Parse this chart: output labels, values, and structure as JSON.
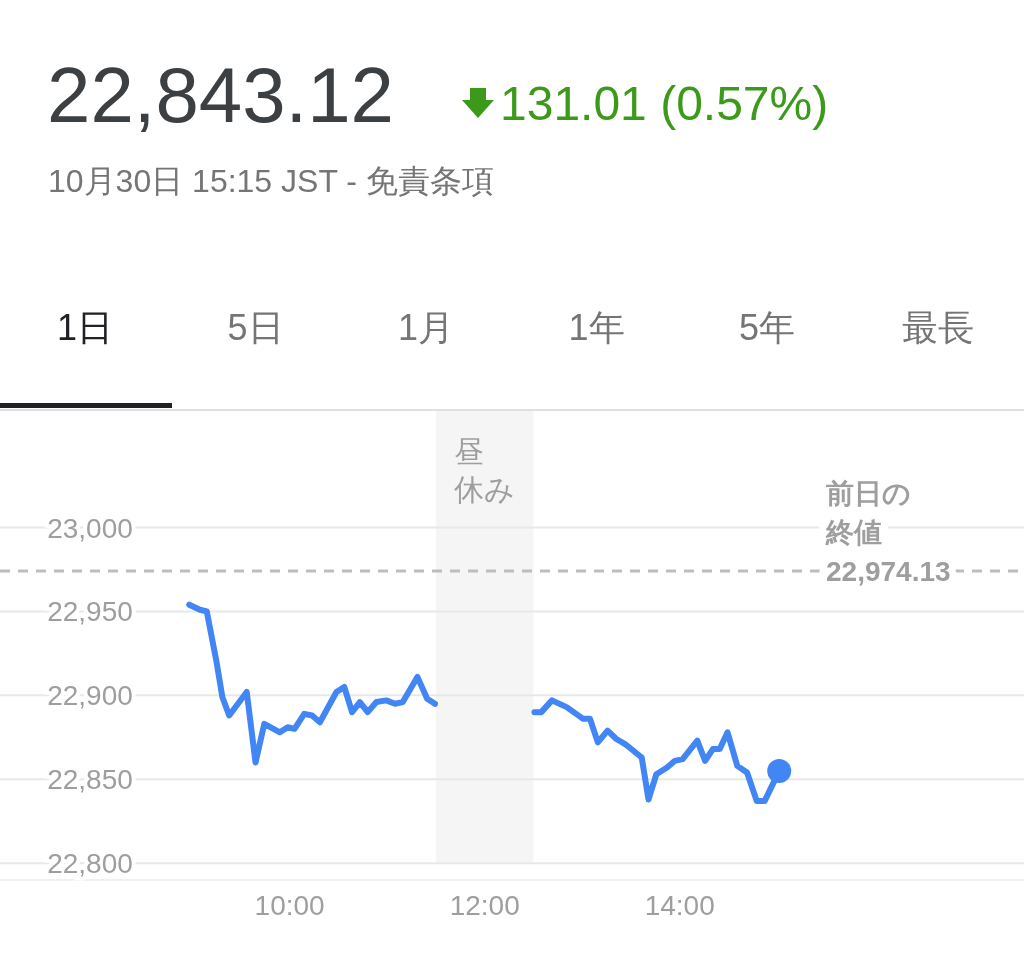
{
  "chart_data": {
    "type": "line",
    "title": "22,843.12",
    "annotations": [
      "131.01 (0.57%)",
      "10月30日 15:15 JST - 免責条項",
      "1日",
      "5日",
      "1月",
      "1年",
      "5年",
      "最長",
      {
        "text": "22,974.13",
        "x": 15.5,
        "y": 22974.13
      }
    ],
    "series": [
      {
        "color": "#4285f4",
        "x": [
          8.97,
          9.08,
          9.15,
          9.25,
          9.31,
          9.38,
          9.56,
          9.65,
          9.74,
          9.9,
          9.98,
          10.05,
          10.15,
          10.23,
          10.31,
          10.48,
          10.56,
          10.64,
          10.72,
          10.8,
          10.89,
          10.99,
          11.08,
          11.16,
          11.31,
          11.41,
          11.49,
          12.0,
          12.51,
          12.58,
          12.69,
          12.84,
          13.01,
          13.08,
          13.16,
          13.26,
          13.35,
          13.44,
          13.61,
          13.68,
          13.76,
          13.87,
          13.95,
          14.03,
          14.18,
          14.26,
          14.34,
          14.41,
          14.49,
          14.59,
          14.69,
          14.79,
          14.87,
          15.02
        ],
        "values": [
          22954,
          22951,
          22950,
          22920,
          22899,
          22888,
          22902,
          22860,
          22883,
          22878,
          22881,
          22880,
          22889,
          22888,
          22884,
          22902,
          22905,
          22890,
          22896,
          22890,
          22896,
          22897,
          22895,
          22896,
          22911,
          22898,
          22895,
          null,
          22890,
          22890,
          22897,
          22893,
          22886,
          22886,
          22872,
          22879,
          22874,
          22871,
          22863,
          22838,
          22853,
          22857,
          22861,
          22862,
          22873,
          22861,
          22868,
          22868,
          22878,
          22858,
          22854,
          22837,
          22837,
          22855
        ]
      }
    ],
    "xlim": [
      7.03,
      17.53
    ],
    "ylim": [
      22790,
      23070
    ],
    "xticks": [
      {
        "value": 10,
        "label": "10:00"
      },
      {
        "value": 12,
        "label": "12:00"
      },
      {
        "value": 14,
        "label": "14:00"
      }
    ],
    "yticks": [
      {
        "value": 22800,
        "label": "22,800"
      },
      {
        "value": 22850,
        "label": "22,850"
      },
      {
        "value": 22900,
        "label": "22,900"
      },
      {
        "value": 22950,
        "label": "22,950"
      },
      {
        "value": 23000,
        "label": "23,000"
      }
    ],
    "grid": "y",
    "line_style": "solid",
    "marker": "none",
    "ref_lines": [
      {
        "axis": "y",
        "value": 22974.13,
        "label": "前日の終値",
        "color": "#bdbdbd",
        "line_style": "dashed"
      }
    ],
    "bands": [
      {
        "axis": "x",
        "from": 11.5,
        "to": 12.5,
        "label": "昼休み",
        "color": "#f5f5f5"
      }
    ]
  }
}
